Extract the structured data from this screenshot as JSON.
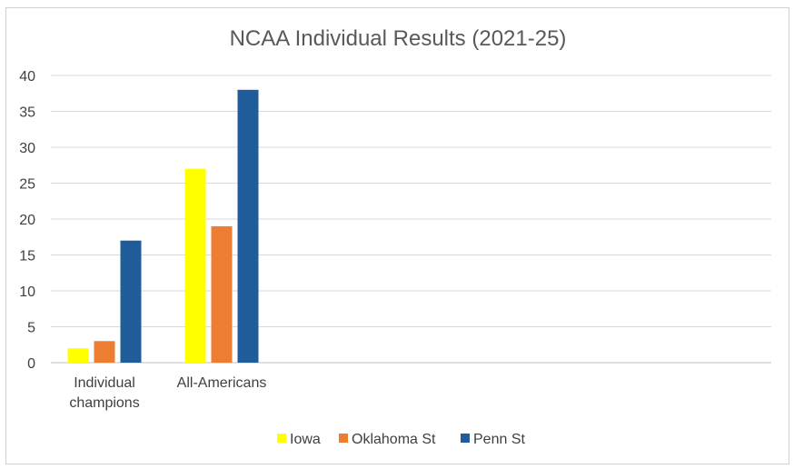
{
  "chart_data": {
    "type": "bar",
    "title": "NCAA Individual Results (2021-25)",
    "xlabel": "",
    "ylabel": "",
    "categories": [
      "Individual champions",
      "All-Americans"
    ],
    "category_lines": [
      [
        "Individual",
        "champions"
      ],
      [
        "All-Americans"
      ]
    ],
    "series": [
      {
        "name": "Iowa",
        "color": "#FFFF00",
        "values": [
          2,
          27
        ]
      },
      {
        "name": "Oklahoma St",
        "color": "#ED7D31",
        "values": [
          3,
          19
        ]
      },
      {
        "name": "Penn St",
        "color": "#1F5C99",
        "values": [
          17,
          38
        ]
      }
    ],
    "ylim": [
      0,
      40
    ],
    "yticks": [
      0,
      5,
      10,
      15,
      20,
      25,
      30,
      35,
      40
    ],
    "grid": true,
    "legend_position": "bottom"
  }
}
